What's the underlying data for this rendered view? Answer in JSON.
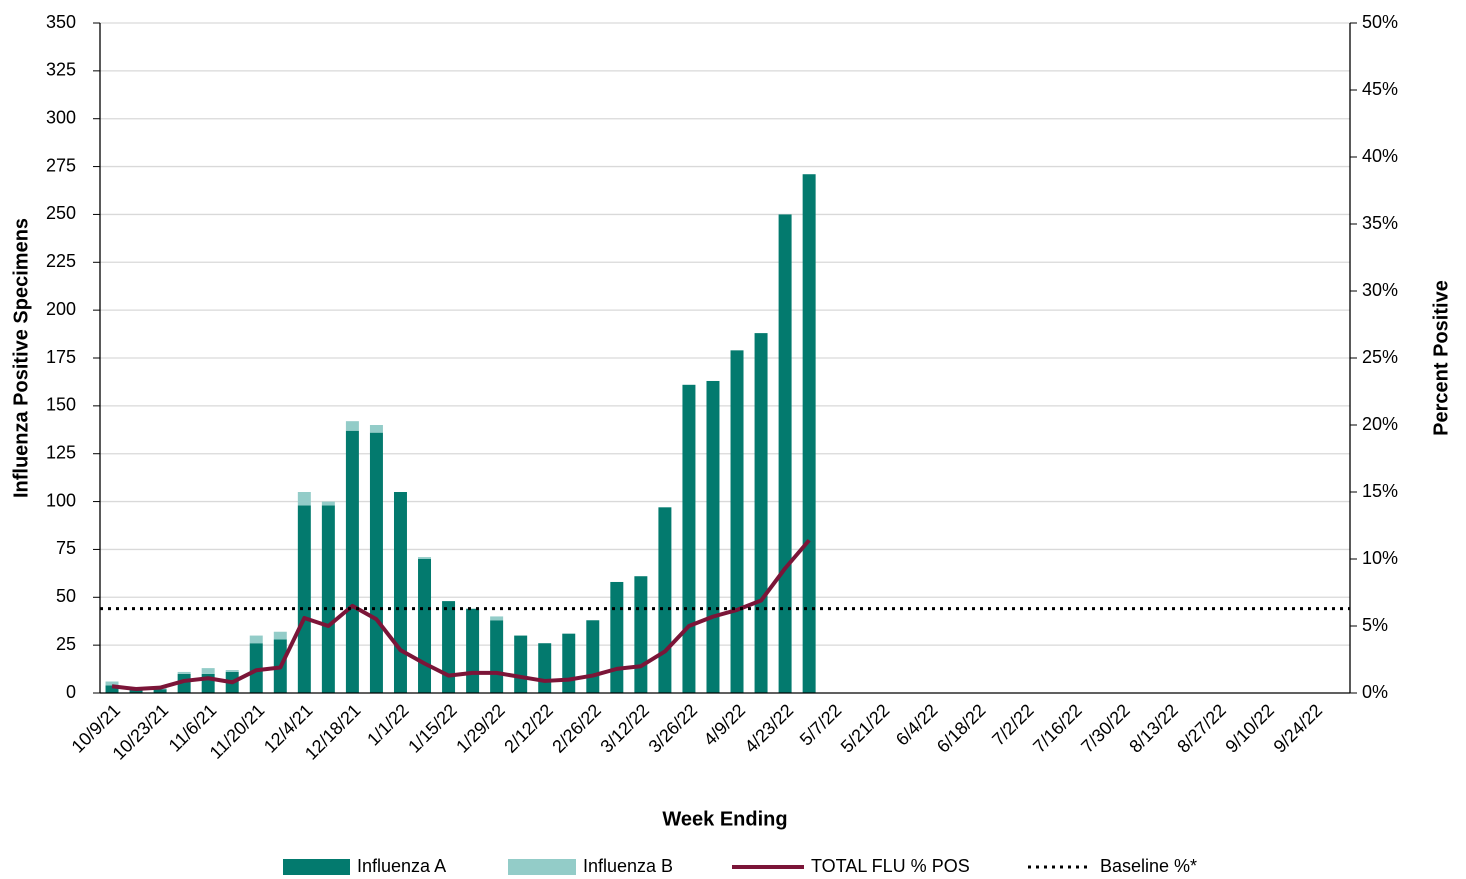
{
  "chart_data": {
    "type": "bar",
    "stacked": true,
    "y_label": "Influenza Positive Specimens",
    "y2_label": "Percent Positive",
    "x_label": "Week Ending",
    "categories": [
      "10/9/21",
      null,
      "10/23/21",
      null,
      "11/6/21",
      null,
      "11/20/21",
      null,
      "12/4/21",
      null,
      "12/18/21",
      null,
      "1/1/22",
      null,
      "1/15/22",
      null,
      "1/29/22",
      null,
      "2/12/22",
      null,
      "2/26/22",
      null,
      "3/12/22",
      null,
      "3/26/22",
      null,
      "4/9/22",
      null,
      "4/23/22",
      null,
      "5/7/22",
      null,
      "5/21/22",
      null,
      "6/4/22",
      null,
      "6/18/22",
      null,
      "7/2/22",
      null,
      "7/16/22",
      null,
      "7/30/22",
      null,
      "8/13/22",
      null,
      "8/27/22",
      null,
      "9/10/22",
      null,
      "9/24/22",
      null
    ],
    "series": [
      {
        "name": "Influenza A",
        "type": "bar",
        "color": "#037a6e",
        "values": [
          4,
          2,
          2,
          10,
          10,
          11,
          26,
          28,
          98,
          98,
          137,
          136,
          105,
          70,
          48,
          44,
          38,
          30,
          26,
          31,
          38,
          58,
          61,
          97,
          161,
          163,
          179,
          188,
          250,
          271,
          null,
          null,
          null,
          null,
          null,
          null,
          null,
          null,
          null,
          null,
          null,
          null,
          null,
          null,
          null,
          null,
          null,
          null,
          null,
          null,
          null,
          null
        ]
      },
      {
        "name": "Influenza B",
        "type": "bar",
        "color": "#93ccc8",
        "values": [
          2,
          1,
          1,
          1,
          3,
          1,
          4,
          4,
          7,
          2,
          5,
          4,
          0,
          1,
          0,
          0,
          2,
          0,
          0,
          0,
          0,
          0,
          0,
          0,
          0,
          0,
          0,
          0,
          0,
          0,
          null,
          null,
          null,
          null,
          null,
          null,
          null,
          null,
          null,
          null,
          null,
          null,
          null,
          null,
          null,
          null,
          null,
          null,
          null,
          null,
          null,
          null
        ]
      },
      {
        "name": "TOTAL FLU % POS",
        "type": "line",
        "axis": "y2",
        "color": "#7b1538",
        "values": [
          0.5,
          0.3,
          0.4,
          0.9,
          1.1,
          0.8,
          1.7,
          1.9,
          5.6,
          5.0,
          6.5,
          5.5,
          3.2,
          2.2,
          1.3,
          1.5,
          1.5,
          1.2,
          0.9,
          1.0,
          1.3,
          1.8,
          2.0,
          3.1,
          5.0,
          5.7,
          6.2,
          6.9,
          9.3,
          11.4,
          null,
          null,
          null,
          null,
          null,
          null,
          null,
          null,
          null,
          null,
          null,
          null,
          null,
          null,
          null,
          null,
          null,
          null,
          null,
          null,
          null,
          null
        ]
      }
    ],
    "reference_lines": [
      {
        "name": "Baseline %*",
        "value": 6.3,
        "axis": "y2",
        "color": "#000000",
        "style": "dotted"
      }
    ],
    "ylim": [
      0,
      350
    ],
    "yticks": [
      0,
      25,
      50,
      75,
      100,
      125,
      150,
      175,
      200,
      225,
      250,
      275,
      300,
      325,
      350
    ],
    "y2lim": [
      0,
      50
    ],
    "y2ticks": [
      {
        "value": 0,
        "label": "0%"
      },
      {
        "value": 5,
        "label": "5%"
      },
      {
        "value": 10,
        "label": "10%"
      },
      {
        "value": 15,
        "label": "15%"
      },
      {
        "value": 20,
        "label": "20%"
      },
      {
        "value": 25,
        "label": "25%"
      },
      {
        "value": 30,
        "label": "30%"
      },
      {
        "value": 35,
        "label": "35%"
      },
      {
        "value": 40,
        "label": "40%"
      },
      {
        "value": 45,
        "label": "45%"
      },
      {
        "value": 50,
        "label": "50%"
      }
    ],
    "grid": true,
    "legend": "bottom"
  }
}
